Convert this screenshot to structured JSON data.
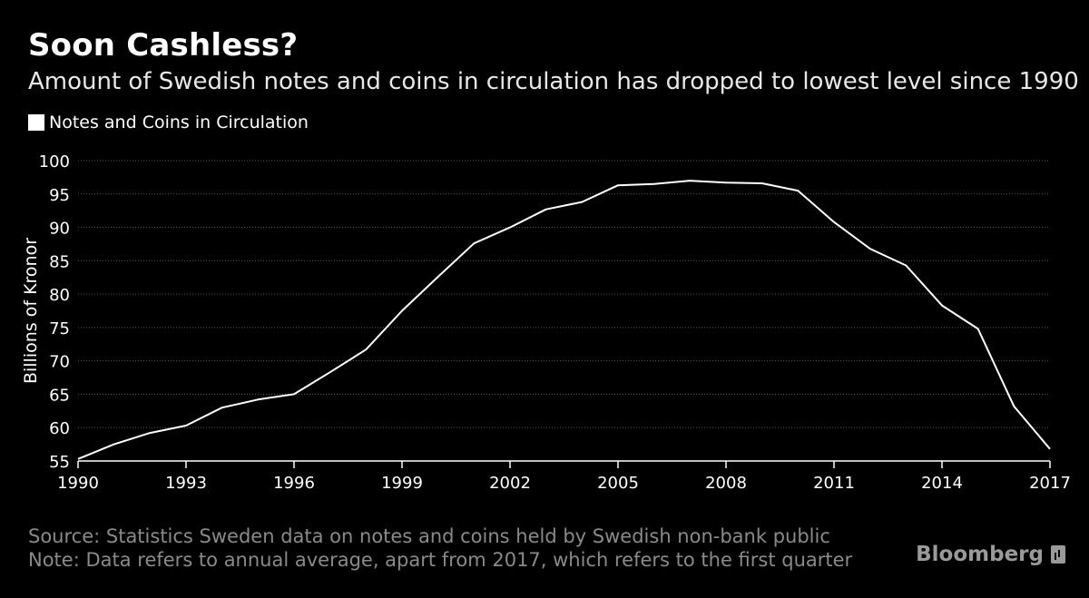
{
  "header": {
    "title": "Soon Cashless?",
    "subtitle": "Amount of Swedish notes and coins in circulation has dropped to lowest level since 1990"
  },
  "footer": {
    "source": "Source: Statistics Sweden data on notes and coins held by Swedish non-bank public",
    "note": "Note: Data refers to annual average, apart from 2017, which refers to the first quarter",
    "logo": "Bloomberg"
  },
  "colors": {
    "background": "#000000",
    "line": "#ffffff",
    "grid": "#555555",
    "footer_text": "#8a8a8a"
  },
  "chart_data": {
    "type": "line",
    "title": "Soon Cashless?",
    "subtitle": "Amount of Swedish notes and coins in circulation has dropped to lowest level since 1990",
    "ylabel": "Billions of Kronor",
    "xlabel": "",
    "legend": "top-left",
    "grid": true,
    "xlim": [
      1990,
      2017
    ],
    "ylim": [
      55,
      100
    ],
    "xticks": [
      1990,
      1993,
      1996,
      1999,
      2002,
      2005,
      2008,
      2011,
      2014,
      2017
    ],
    "yticks": [
      55,
      60,
      65,
      70,
      75,
      80,
      85,
      90,
      95,
      100
    ],
    "series": [
      {
        "name": "Notes and Coins in Circulation",
        "x": [
          1990,
          1991,
          1992,
          1993,
          1994,
          1995,
          1996,
          1997,
          1998,
          1999,
          2000,
          2001,
          2002,
          2003,
          2004,
          2005,
          2006,
          2007,
          2008,
          2009,
          2010,
          2011,
          2012,
          2013,
          2014,
          2015,
          2016,
          2017
        ],
        "values": [
          55.3,
          57.5,
          59.2,
          60.3,
          63.0,
          64.2,
          65.0,
          68.3,
          71.7,
          77.5,
          82.6,
          87.6,
          90.0,
          92.7,
          93.8,
          96.3,
          96.5,
          97.0,
          96.7,
          96.6,
          95.5,
          90.8,
          86.8,
          84.3,
          78.3,
          74.8,
          63.2,
          56.8
        ]
      }
    ]
  }
}
